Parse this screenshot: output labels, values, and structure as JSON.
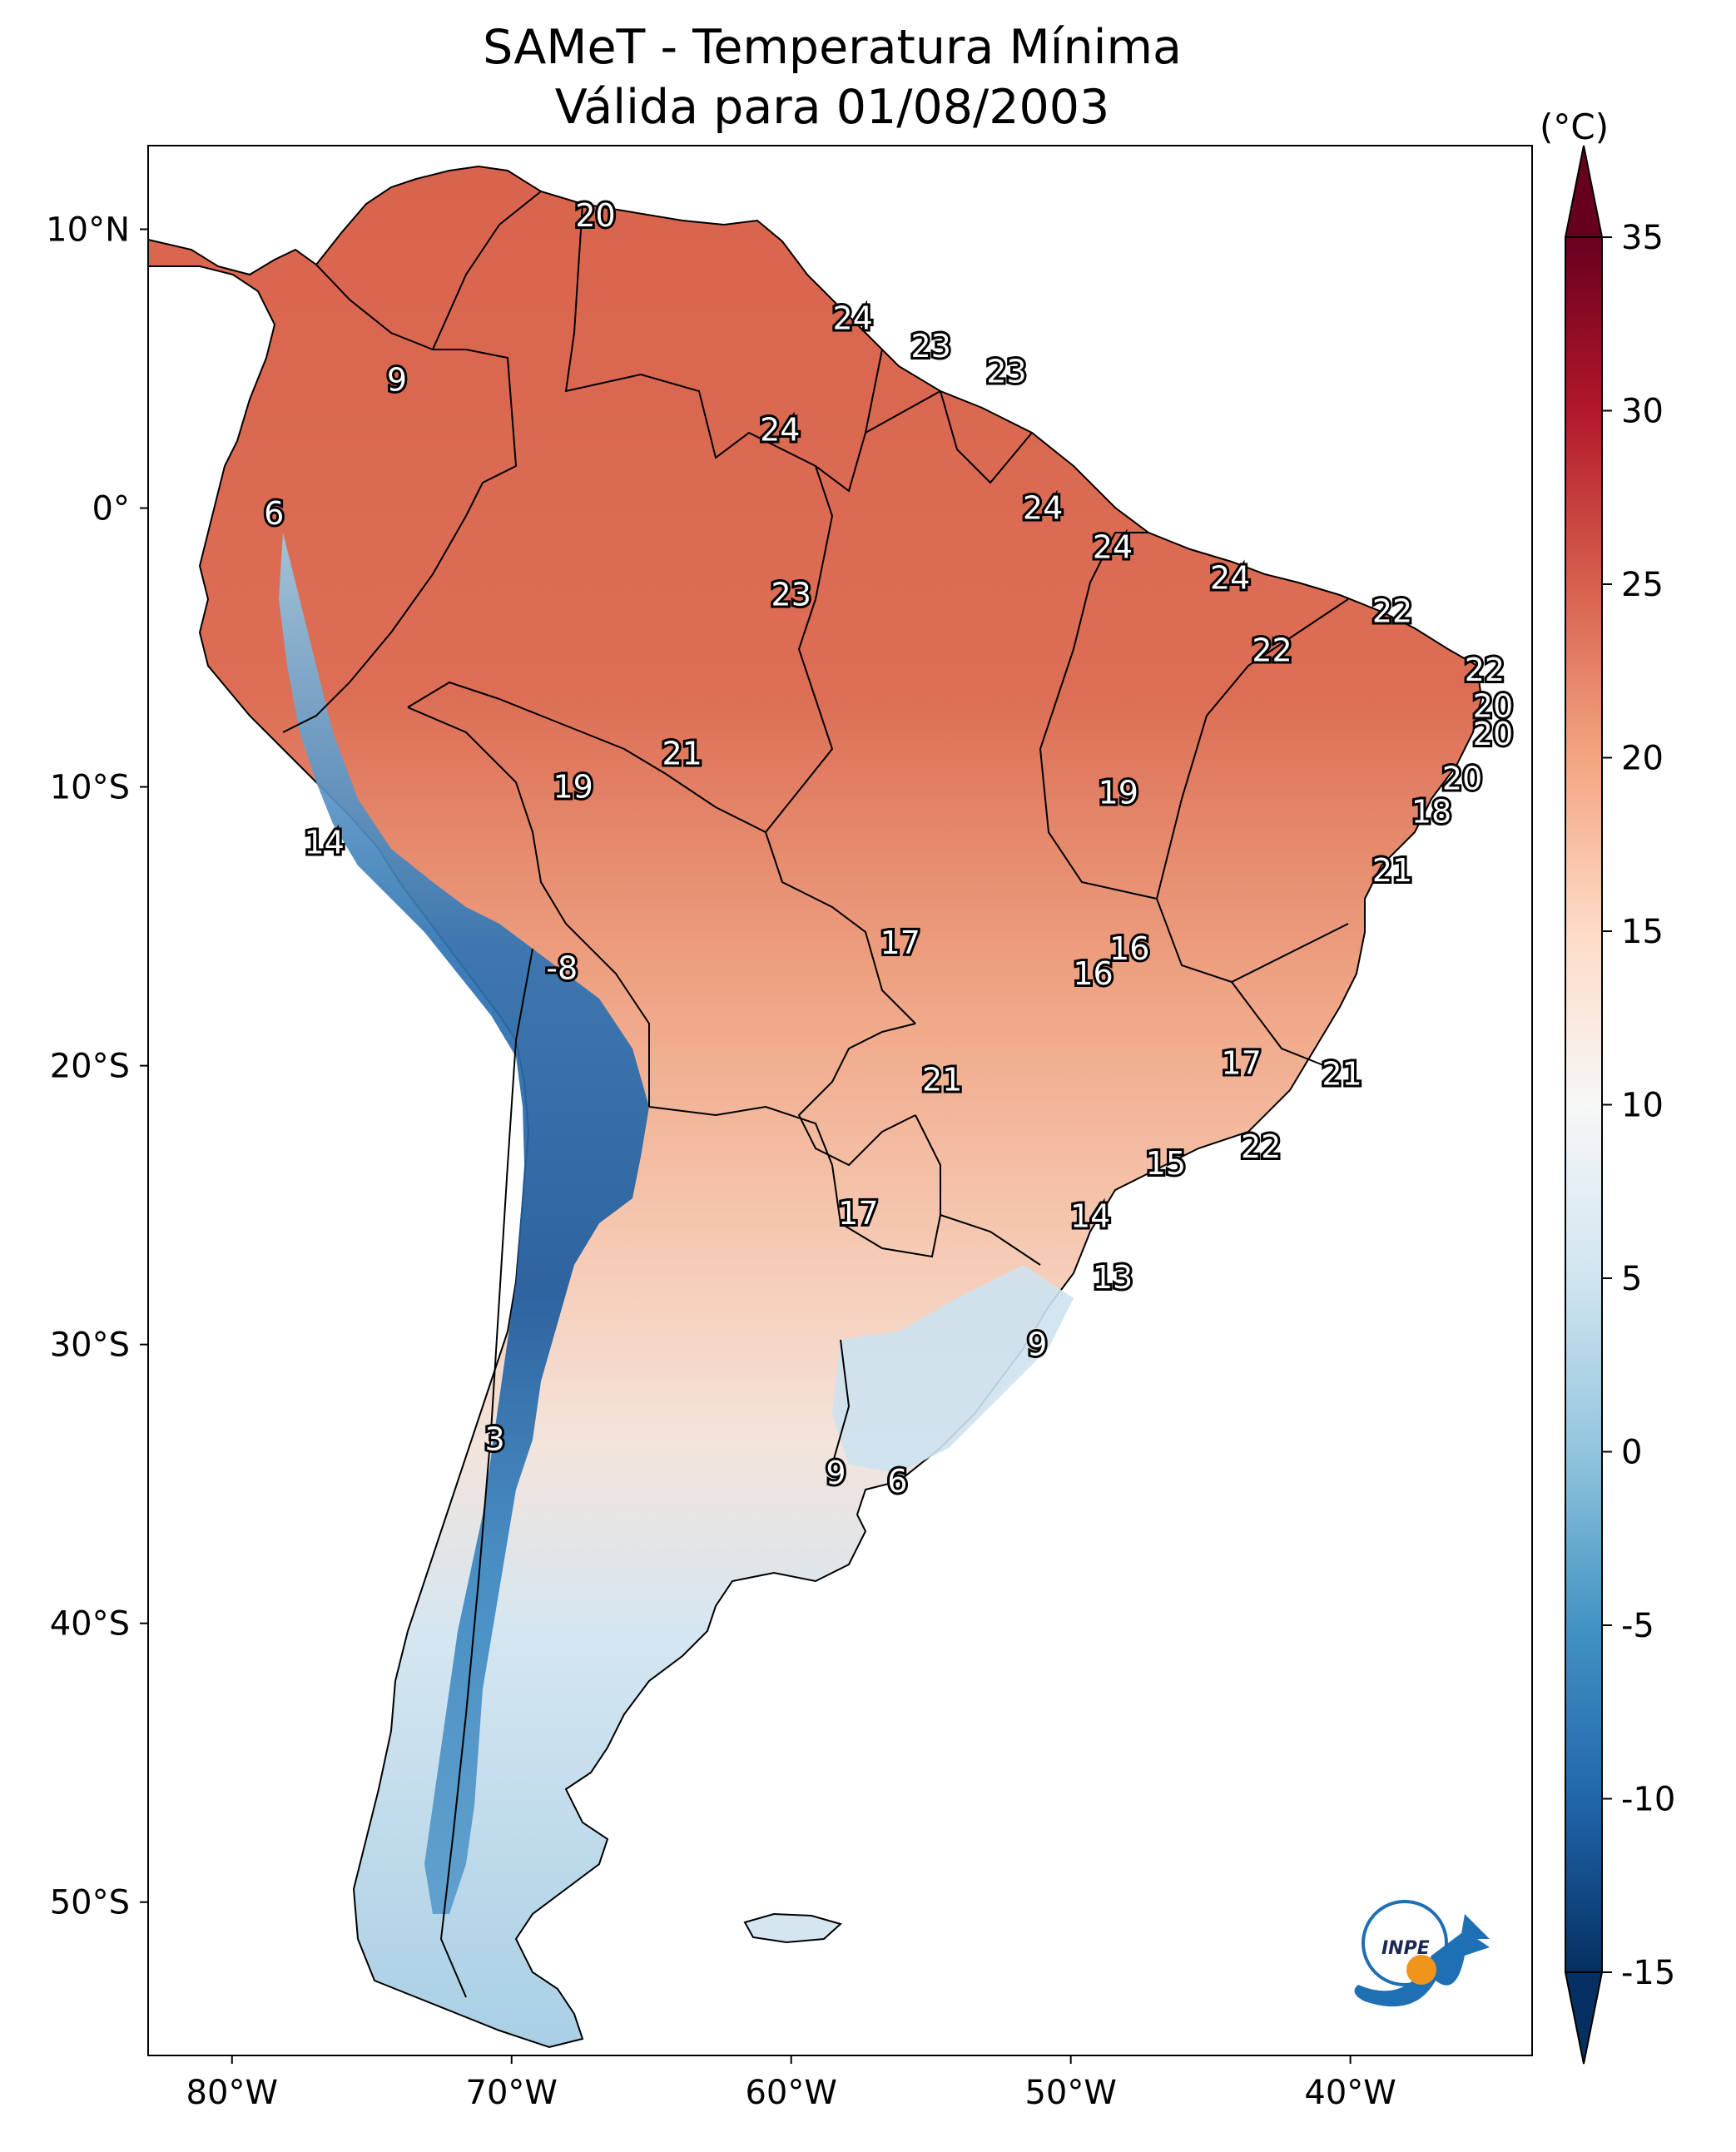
{
  "title": "SAMeT - Temperatura Mínima",
  "subtitle": "Válida para 01/08/2003",
  "colorbar": {
    "unit": "(°C)",
    "ticks": [
      "35",
      "30",
      "25",
      "20",
      "15",
      "10",
      "5",
      "0",
      "-5",
      "-10",
      "-15"
    ],
    "range": [
      -15,
      35
    ],
    "colors": [
      "#053061",
      "#2166ac",
      "#4393c3",
      "#92c5de",
      "#d1e5f0",
      "#f7f7f7",
      "#fddbc7",
      "#f4a582",
      "#d6604d",
      "#b2182b",
      "#67001f"
    ]
  },
  "axes": {
    "lon_labels": [
      "80°W",
      "70°W",
      "60°W",
      "50°W",
      "40°W"
    ],
    "lat_labels": [
      "10°N",
      "0°",
      "10°S",
      "20°S",
      "30°S",
      "40°S",
      "50°S"
    ],
    "lon_range": [
      -83,
      -33.5
    ],
    "lat_range": [
      -55.5,
      13
    ]
  },
  "logo": "INPE",
  "city_labels": [
    {
      "text": "20",
      "lon": -67.0,
      "lat": 10.5
    },
    {
      "text": "9",
      "lon": -74.1,
      "lat": 4.6
    },
    {
      "text": "24",
      "lon": -57.8,
      "lat": 6.8
    },
    {
      "text": "23",
      "lon": -55.0,
      "lat": 5.8
    },
    {
      "text": "23",
      "lon": -52.3,
      "lat": 4.9
    },
    {
      "text": "24",
      "lon": -60.4,
      "lat": 2.8
    },
    {
      "text": "6",
      "lon": -78.5,
      "lat": -0.2
    },
    {
      "text": "24",
      "lon": -51.0,
      "lat": 0.0
    },
    {
      "text": "24",
      "lon": -48.5,
      "lat": -1.4
    },
    {
      "text": "24",
      "lon": -44.3,
      "lat": -2.5
    },
    {
      "text": "23",
      "lon": -60.0,
      "lat": -3.1
    },
    {
      "text": "22",
      "lon": -38.5,
      "lat": -3.7
    },
    {
      "text": "22",
      "lon": -42.8,
      "lat": -5.1
    },
    {
      "text": "22",
      "lon": -35.2,
      "lat": -5.8
    },
    {
      "text": "20",
      "lon": -34.9,
      "lat": -7.1
    },
    {
      "text": "20",
      "lon": -34.9,
      "lat": -8.1
    },
    {
      "text": "21",
      "lon": -63.9,
      "lat": -8.8
    },
    {
      "text": "19",
      "lon": -67.8,
      "lat": -10.0
    },
    {
      "text": "19",
      "lon": -48.3,
      "lat": -10.2
    },
    {
      "text": "20",
      "lon": -36.0,
      "lat": -9.7
    },
    {
      "text": "18",
      "lon": -37.1,
      "lat": -10.9
    },
    {
      "text": "21",
      "lon": -38.5,
      "lat": -13.0
    },
    {
      "text": "14",
      "lon": -76.7,
      "lat": -12.0
    },
    {
      "text": "17",
      "lon": -56.1,
      "lat": -15.6
    },
    {
      "text": "16",
      "lon": -47.9,
      "lat": -15.8
    },
    {
      "text": "16",
      "lon": -49.2,
      "lat": -16.7
    },
    {
      "text": "-8",
      "lon": -68.2,
      "lat": -16.5
    },
    {
      "text": "17",
      "lon": -43.9,
      "lat": -19.9
    },
    {
      "text": "21",
      "lon": -40.3,
      "lat": -20.3
    },
    {
      "text": "21",
      "lon": -54.6,
      "lat": -20.5
    },
    {
      "text": "22",
      "lon": -43.2,
      "lat": -22.9
    },
    {
      "text": "15",
      "lon": -46.6,
      "lat": -23.5
    },
    {
      "text": "17",
      "lon": -57.6,
      "lat": -25.3
    },
    {
      "text": "14",
      "lon": -49.3,
      "lat": -25.4
    },
    {
      "text": "13",
      "lon": -48.5,
      "lat": -27.6
    },
    {
      "text": "9",
      "lon": -51.2,
      "lat": -30.0
    },
    {
      "text": "3",
      "lon": -70.6,
      "lat": -33.4
    },
    {
      "text": "9",
      "lon": -58.4,
      "lat": -34.6
    },
    {
      "text": "6",
      "lon": -56.2,
      "lat": -34.9
    }
  ]
}
